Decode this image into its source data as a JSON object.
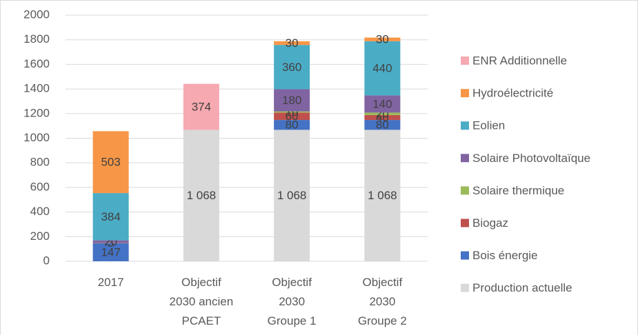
{
  "chart_data": {
    "type": "stacked_bar",
    "categories": [
      "2017",
      "Objectif\n2030 ancien\nPCAET",
      "Objectif\n2030\nGroupe 1",
      "Objectif\n2030\nGroupe 2"
    ],
    "series": [
      {
        "name": "Production actuelle",
        "color": "#d9d9d9",
        "values": [
          null,
          1068,
          1068,
          1068
        ],
        "value_labels": [
          null,
          "1 068",
          "1 068",
          "1 068"
        ]
      },
      {
        "name": "Bois énergie",
        "color": "#4472c4",
        "values": [
          147,
          null,
          80,
          80
        ]
      },
      {
        "name": "Biogaz",
        "color": "#c0504d",
        "values": [
          3,
          null,
          60,
          40
        ]
      },
      {
        "name": "Solaire thermique",
        "color": "#9bbb59",
        "values": [
          null,
          null,
          10,
          20
        ]
      },
      {
        "name": "Solaire Photovoltaïque",
        "color": "#8064a2",
        "values": [
          20,
          null,
          180,
          140
        ]
      },
      {
        "name": "Eolien",
        "color": "#4bacc6",
        "values": [
          384,
          null,
          360,
          440
        ]
      },
      {
        "name": "Hydroélectricité",
        "color": "#f79646",
        "values": [
          503,
          null,
          30,
          30
        ]
      },
      {
        "name": "ENR Additionnelle",
        "color": "#f6a9b0",
        "values": [
          null,
          374,
          null,
          null
        ]
      }
    ],
    "ylim": [
      0,
      2000
    ],
    "yticks": [
      0,
      200,
      400,
      600,
      800,
      1000,
      1200,
      1400,
      1600,
      1800,
      2000
    ],
    "grid": true,
    "legend": "right"
  }
}
